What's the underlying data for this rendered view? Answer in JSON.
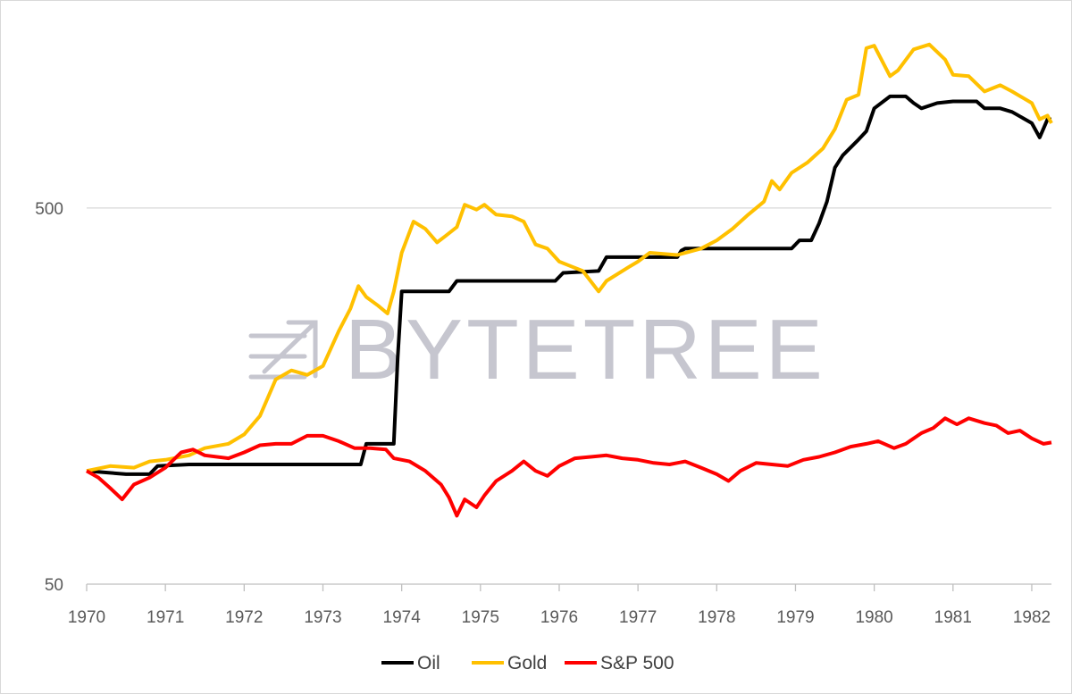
{
  "watermark": {
    "text": "BYTETREE"
  },
  "chart_data": {
    "type": "line",
    "title": "",
    "xlabel": "",
    "ylabel": "",
    "y_scale": "log",
    "ylim": [
      50,
      1700
    ],
    "y_ticks": [
      {
        "value": 50,
        "label": "50"
      },
      {
        "value": 500,
        "label": "500"
      }
    ],
    "xlim": [
      1970,
      1982.25
    ],
    "x_ticks": [
      1970,
      1971,
      1972,
      1973,
      1974,
      1975,
      1976,
      1977,
      1978,
      1979,
      1980,
      1981,
      1982
    ],
    "grid": "horizontal",
    "legend": "bottom",
    "series": [
      {
        "name": "Oil",
        "color": "#000000",
        "points": [
          [
            1970,
            100
          ],
          [
            1970.5,
            98
          ],
          [
            1970.8,
            98
          ],
          [
            1970.9,
            103
          ],
          [
            1971.3,
            104
          ],
          [
            1972,
            104
          ],
          [
            1973,
            104
          ],
          [
            1973.48,
            104
          ],
          [
            1973.55,
            118
          ],
          [
            1973.9,
            118
          ],
          [
            1973.95,
            200
          ],
          [
            1974,
            300
          ],
          [
            1974.3,
            300
          ],
          [
            1974.6,
            300
          ],
          [
            1974.7,
            320
          ],
          [
            1975,
            320
          ],
          [
            1975.5,
            320
          ],
          [
            1975.95,
            320
          ],
          [
            1976.05,
            336
          ],
          [
            1976.5,
            340
          ],
          [
            1976.6,
            370
          ],
          [
            1977,
            370
          ],
          [
            1977.5,
            370
          ],
          [
            1977.55,
            385
          ],
          [
            1977.6,
            390
          ],
          [
            1978,
            390
          ],
          [
            1978.5,
            390
          ],
          [
            1978.95,
            390
          ],
          [
            1979.05,
            410
          ],
          [
            1979.2,
            410
          ],
          [
            1979.3,
            455
          ],
          [
            1979.4,
            520
          ],
          [
            1979.5,
            640
          ],
          [
            1979.6,
            690
          ],
          [
            1979.8,
            760
          ],
          [
            1979.9,
            800
          ],
          [
            1980,
            920
          ],
          [
            1980.2,
            990
          ],
          [
            1980.4,
            990
          ],
          [
            1980.5,
            950
          ],
          [
            1980.6,
            920
          ],
          [
            1980.8,
            950
          ],
          [
            1981,
            960
          ],
          [
            1981.3,
            960
          ],
          [
            1981.4,
            920
          ],
          [
            1981.6,
            920
          ],
          [
            1981.75,
            900
          ],
          [
            1982,
            840
          ],
          [
            1982.1,
            770
          ],
          [
            1982.2,
            860
          ],
          [
            1982.25,
            860
          ]
        ]
      },
      {
        "name": "Gold",
        "color": "#ffc000",
        "points": [
          [
            1970,
            100
          ],
          [
            1970.3,
            103
          ],
          [
            1970.6,
            102
          ],
          [
            1970.8,
            106
          ],
          [
            1971,
            107
          ],
          [
            1971.3,
            110
          ],
          [
            1971.5,
            115
          ],
          [
            1971.8,
            118
          ],
          [
            1972,
            125
          ],
          [
            1972.2,
            140
          ],
          [
            1972.4,
            175
          ],
          [
            1972.6,
            185
          ],
          [
            1972.8,
            180
          ],
          [
            1973,
            190
          ],
          [
            1973.2,
            235
          ],
          [
            1973.35,
            270
          ],
          [
            1973.45,
            310
          ],
          [
            1973.55,
            290
          ],
          [
            1973.7,
            275
          ],
          [
            1973.82,
            262
          ],
          [
            1973.9,
            300
          ],
          [
            1974,
            380
          ],
          [
            1974.15,
            460
          ],
          [
            1974.3,
            440
          ],
          [
            1974.45,
            405
          ],
          [
            1974.55,
            420
          ],
          [
            1974.7,
            445
          ],
          [
            1974.8,
            510
          ],
          [
            1974.95,
            495
          ],
          [
            1975.05,
            510
          ],
          [
            1975.2,
            480
          ],
          [
            1975.4,
            475
          ],
          [
            1975.55,
            460
          ],
          [
            1975.7,
            400
          ],
          [
            1975.85,
            390
          ],
          [
            1976,
            360
          ],
          [
            1976.3,
            340
          ],
          [
            1976.5,
            300
          ],
          [
            1976.6,
            320
          ],
          [
            1976.9,
            350
          ],
          [
            1977,
            360
          ],
          [
            1977.15,
            380
          ],
          [
            1977.5,
            375
          ],
          [
            1977.8,
            390
          ],
          [
            1978,
            410
          ],
          [
            1978.2,
            440
          ],
          [
            1978.4,
            480
          ],
          [
            1978.6,
            520
          ],
          [
            1978.7,
            590
          ],
          [
            1978.8,
            560
          ],
          [
            1978.95,
            620
          ],
          [
            1979.15,
            660
          ],
          [
            1979.35,
            720
          ],
          [
            1979.5,
            810
          ],
          [
            1979.65,
            970
          ],
          [
            1979.8,
            1000
          ],
          [
            1979.9,
            1330
          ],
          [
            1980,
            1350
          ],
          [
            1980.2,
            1120
          ],
          [
            1980.3,
            1160
          ],
          [
            1980.5,
            1320
          ],
          [
            1980.7,
            1360
          ],
          [
            1980.9,
            1240
          ],
          [
            1981,
            1130
          ],
          [
            1981.2,
            1120
          ],
          [
            1981.4,
            1020
          ],
          [
            1981.6,
            1060
          ],
          [
            1981.75,
            1020
          ],
          [
            1982,
            950
          ],
          [
            1982.1,
            860
          ],
          [
            1982.2,
            880
          ],
          [
            1982.25,
            840
          ]
        ]
      },
      {
        "name": "S&P 500",
        "color": "#ff0000",
        "points": [
          [
            1970,
            100
          ],
          [
            1970.15,
            96
          ],
          [
            1970.3,
            90
          ],
          [
            1970.45,
            84
          ],
          [
            1970.6,
            92
          ],
          [
            1970.8,
            96
          ],
          [
            1971,
            102
          ],
          [
            1971.2,
            112
          ],
          [
            1971.35,
            114
          ],
          [
            1971.5,
            110
          ],
          [
            1971.8,
            108
          ],
          [
            1972,
            112
          ],
          [
            1972.2,
            117
          ],
          [
            1972.4,
            118
          ],
          [
            1972.6,
            118
          ],
          [
            1972.8,
            124
          ],
          [
            1973,
            124
          ],
          [
            1973.2,
            120
          ],
          [
            1973.4,
            115
          ],
          [
            1973.6,
            115
          ],
          [
            1973.8,
            114
          ],
          [
            1973.9,
            108
          ],
          [
            1974.1,
            106
          ],
          [
            1974.3,
            100
          ],
          [
            1974.5,
            92
          ],
          [
            1974.6,
            85
          ],
          [
            1974.7,
            76
          ],
          [
            1974.8,
            84
          ],
          [
            1974.95,
            80
          ],
          [
            1975.05,
            86
          ],
          [
            1975.2,
            94
          ],
          [
            1975.4,
            100
          ],
          [
            1975.55,
            106
          ],
          [
            1975.7,
            100
          ],
          [
            1975.85,
            97
          ],
          [
            1976,
            103
          ],
          [
            1976.2,
            108
          ],
          [
            1976.4,
            109
          ],
          [
            1976.6,
            110
          ],
          [
            1976.8,
            108
          ],
          [
            1977,
            107
          ],
          [
            1977.2,
            105
          ],
          [
            1977.4,
            104
          ],
          [
            1977.6,
            106
          ],
          [
            1977.8,
            102
          ],
          [
            1978,
            98
          ],
          [
            1978.15,
            94
          ],
          [
            1978.3,
            100
          ],
          [
            1978.5,
            105
          ],
          [
            1978.7,
            104
          ],
          [
            1978.9,
            103
          ],
          [
            1979.1,
            107
          ],
          [
            1979.3,
            109
          ],
          [
            1979.5,
            112
          ],
          [
            1979.7,
            116
          ],
          [
            1979.9,
            118
          ],
          [
            1980.05,
            120
          ],
          [
            1980.25,
            115
          ],
          [
            1980.4,
            118
          ],
          [
            1980.6,
            126
          ],
          [
            1980.75,
            130
          ],
          [
            1980.9,
            138
          ],
          [
            1981.05,
            133
          ],
          [
            1981.2,
            138
          ],
          [
            1981.4,
            134
          ],
          [
            1981.55,
            132
          ],
          [
            1981.7,
            126
          ],
          [
            1981.85,
            128
          ],
          [
            1982,
            122
          ],
          [
            1982.15,
            118
          ],
          [
            1982.25,
            119
          ]
        ]
      }
    ]
  }
}
